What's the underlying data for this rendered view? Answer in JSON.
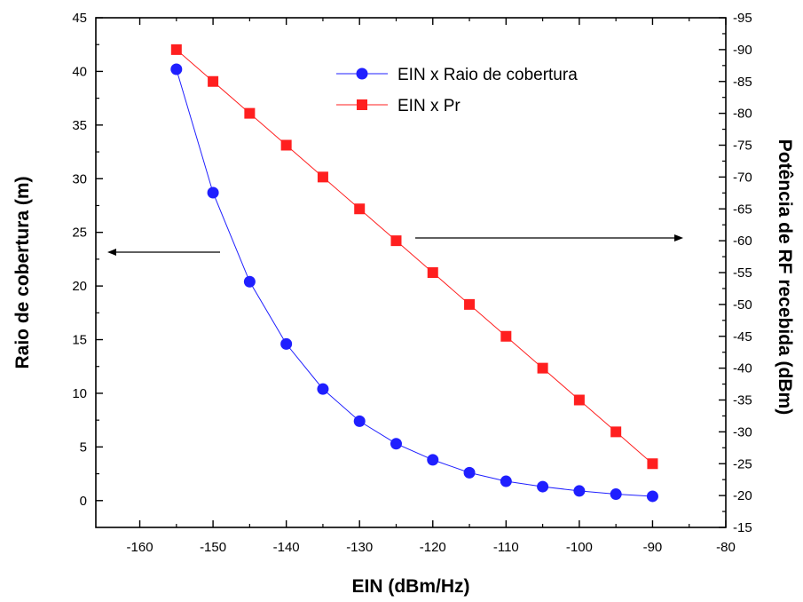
{
  "chart_data": {
    "type": "line",
    "title": "",
    "xlabel": "EIN (dBm/Hz)",
    "ylabel": "Raio de cobertura (m)",
    "y2label": "Potência de RF recebida (dBm)",
    "xlim": [
      -166,
      -80
    ],
    "ylim": [
      -2.5,
      45
    ],
    "y2lim": [
      -15,
      -95
    ],
    "x_ticks": [
      -160,
      -150,
      -140,
      -130,
      -120,
      -110,
      -100,
      -90,
      -80
    ],
    "y_ticks": [
      0,
      5,
      10,
      15,
      20,
      25,
      30,
      35,
      40,
      45
    ],
    "y2_ticks": [
      -15,
      -20,
      -25,
      -30,
      -35,
      -40,
      -45,
      -50,
      -55,
      -60,
      -65,
      -70,
      -75,
      -80,
      -85,
      -90,
      -95
    ],
    "legend_position": "top-right",
    "grid": false,
    "x": [
      -155,
      -150,
      -145,
      -140,
      -135,
      -130,
      -125,
      -120,
      -115,
      -110,
      -105,
      -100,
      -95,
      -90
    ],
    "series": [
      {
        "name": "EIN x Raio de cobertura",
        "axis": "left",
        "marker": "circle",
        "color": "#1f1fff",
        "values": [
          40.2,
          28.7,
          20.4,
          14.6,
          10.4,
          7.4,
          5.3,
          3.8,
          2.6,
          1.8,
          1.3,
          0.9,
          0.6,
          0.4
        ]
      },
      {
        "name": "EIN x Pr",
        "axis": "right",
        "marker": "square",
        "color": "#ff1f1f",
        "values": [
          -90,
          -85,
          -80,
          -75,
          -70,
          -65,
          -60,
          -55,
          -50,
          -45,
          -40,
          -35,
          -30,
          -25
        ]
      }
    ]
  }
}
